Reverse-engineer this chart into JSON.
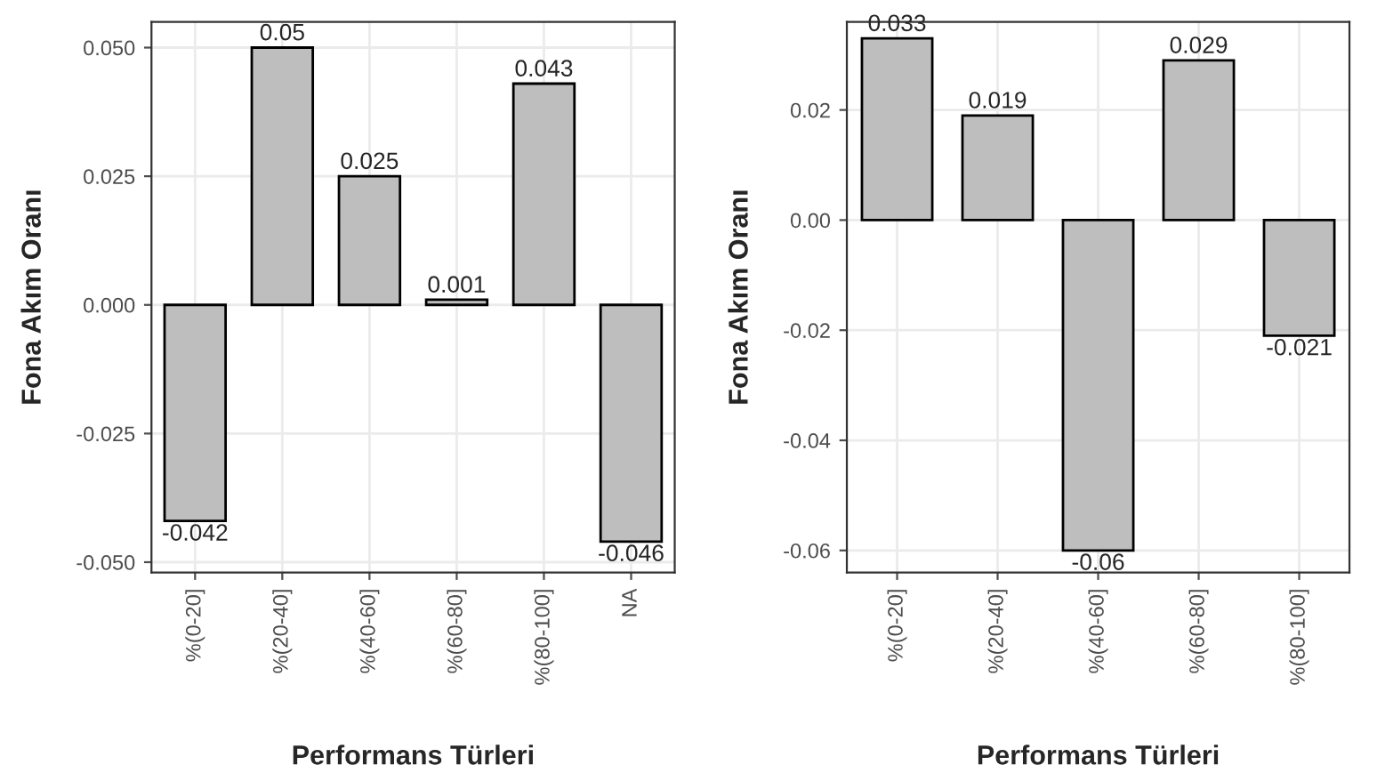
{
  "chart_data": [
    {
      "type": "bar",
      "xlabel": "Performans Türleri",
      "ylabel": "Fona Akım Oranı",
      "categories": [
        "%(0-20]",
        "%(20-40]",
        "%(40-60]",
        "%(60-80]",
        "%(80-100]",
        "NA"
      ],
      "series": [
        {
          "color": "#bebebe",
          "values": [
            -0.042,
            0.05,
            0.025,
            0.001,
            0.043,
            -0.046
          ]
        }
      ],
      "data_labels": true,
      "ylim": [
        -0.052,
        0.055
      ],
      "yticks": [
        {
          "value": -0.05,
          "label": "-0.050"
        },
        {
          "value": -0.025,
          "label": "-0.025"
        },
        {
          "value": 0,
          "label": "0.000"
        },
        {
          "value": 0.025,
          "label": "0.025"
        },
        {
          "value": 0.05,
          "label": "0.050"
        }
      ],
      "grid": true,
      "legend": false
    },
    {
      "type": "bar",
      "xlabel": "Performans Türleri",
      "ylabel": "Fona Akım Oranı",
      "categories": [
        "%(0-20]",
        "%(20-40]",
        "%(40-60]",
        "%(60-80]",
        "%(80-100]"
      ],
      "series": [
        {
          "color": "#bebebe",
          "values": [
            0.033,
            0.019,
            -0.06,
            0.029,
            -0.021
          ]
        }
      ],
      "data_labels": true,
      "ylim": [
        -0.064,
        0.036
      ],
      "yticks": [
        {
          "value": -0.06,
          "label": "-0.06"
        },
        {
          "value": -0.04,
          "label": "-0.04"
        },
        {
          "value": -0.02,
          "label": "-0.02"
        },
        {
          "value": 0,
          "label": "0.00"
        },
        {
          "value": 0.02,
          "label": "0.02"
        }
      ],
      "grid": true,
      "legend": false
    }
  ]
}
